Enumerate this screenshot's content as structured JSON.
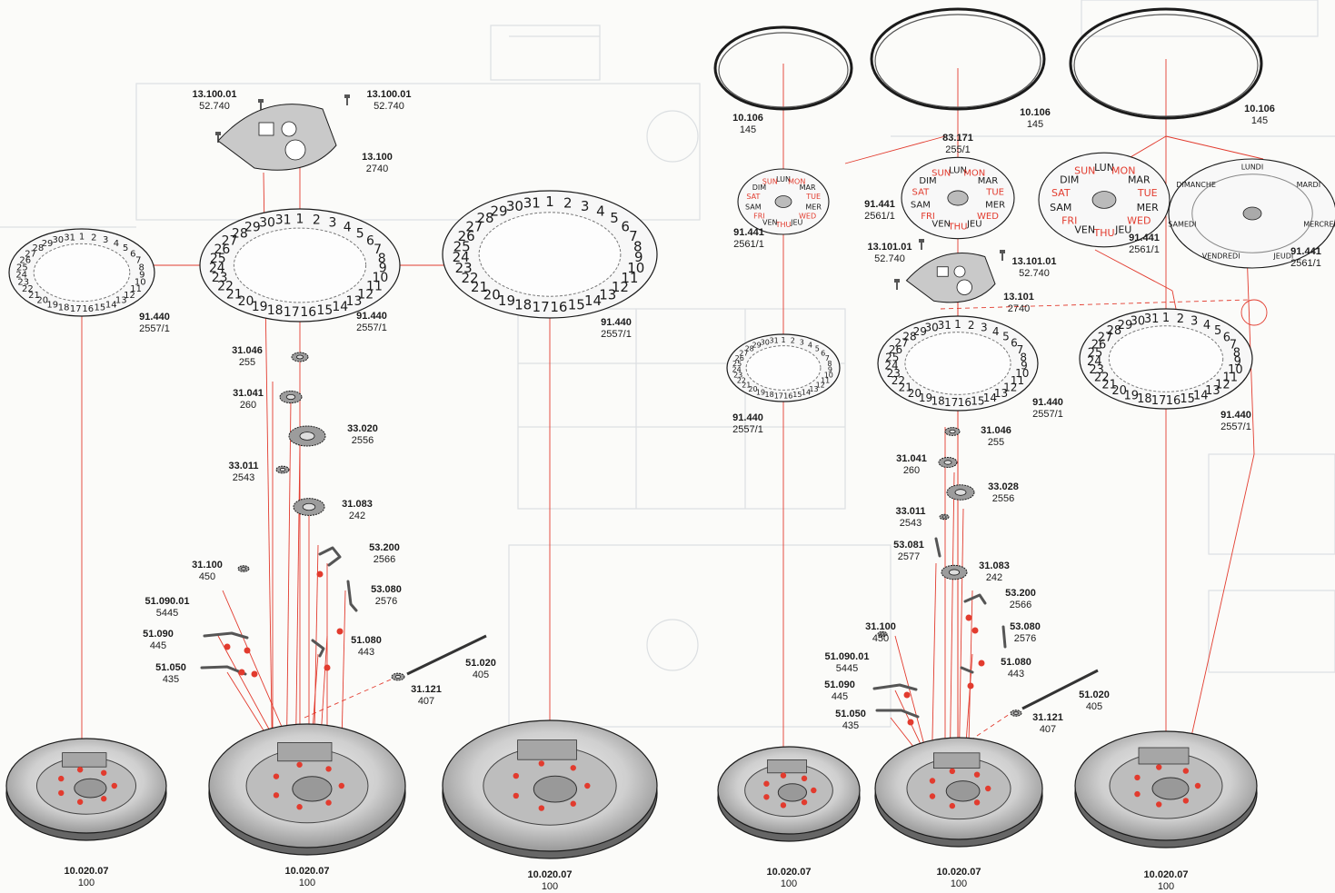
{
  "parts": [
    {
      "id": "p1",
      "code": "13.100.01",
      "number": "52.740"
    },
    {
      "id": "p2",
      "code": "13.100.01",
      "number": "52.740"
    },
    {
      "id": "p3",
      "code": "13.100",
      "number": "2740"
    },
    {
      "id": "p4",
      "code": "91.440",
      "number": "2557/1"
    },
    {
      "id": "p5",
      "code": "91.440",
      "number": "2557/1"
    },
    {
      "id": "p6",
      "code": "91.440",
      "number": "2557/1"
    },
    {
      "id": "p7",
      "code": "31.046",
      "number": "255"
    },
    {
      "id": "p8",
      "code": "31.041",
      "number": "260"
    },
    {
      "id": "p9",
      "code": "33.020",
      "number": "2556"
    },
    {
      "id": "p10",
      "code": "33.011",
      "number": "2543"
    },
    {
      "id": "p11",
      "code": "31.083",
      "number": "242"
    },
    {
      "id": "p12",
      "code": "53.200",
      "number": "2566"
    },
    {
      "id": "p13",
      "code": "31.100",
      "number": "450"
    },
    {
      "id": "p14",
      "code": "53.080",
      "number": "2576"
    },
    {
      "id": "p15",
      "code": "51.090.01",
      "number": "5445"
    },
    {
      "id": "p16",
      "code": "51.090",
      "number": "445"
    },
    {
      "id": "p17",
      "code": "51.080",
      "number": "443"
    },
    {
      "id": "p18",
      "code": "51.050",
      "number": "435"
    },
    {
      "id": "p19",
      "code": "51.020",
      "number": "405"
    },
    {
      "id": "p20",
      "code": "31.121",
      "number": "407"
    },
    {
      "id": "p21",
      "code": "10.020.07",
      "number": "100"
    },
    {
      "id": "p22",
      "code": "10.020.07",
      "number": "100"
    },
    {
      "id": "p23",
      "code": "10.020.07",
      "number": "100"
    },
    {
      "id": "p24",
      "code": "10.106",
      "number": "145"
    },
    {
      "id": "p25",
      "code": "10.106",
      "number": "145"
    },
    {
      "id": "p26",
      "code": "10.106",
      "number": "145"
    },
    {
      "id": "p27",
      "code": "83.171",
      "number": "255/1"
    },
    {
      "id": "p28",
      "code": "91.441",
      "number": "2561/1"
    },
    {
      "id": "p29",
      "code": "91.441",
      "number": "2561/1"
    },
    {
      "id": "p30",
      "code": "91.441",
      "number": "2561/1"
    },
    {
      "id": "p31",
      "code": "91.441",
      "number": "2561/1"
    },
    {
      "id": "p32",
      "code": "13.101.01",
      "number": "52.740"
    },
    {
      "id": "p33",
      "code": "13.101.01",
      "number": "52.740"
    },
    {
      "id": "p34",
      "code": "13.101",
      "number": "2740"
    },
    {
      "id": "p35",
      "code": "91.440",
      "number": "2557/1"
    },
    {
      "id": "p36",
      "code": "91.440",
      "number": "2557/1"
    },
    {
      "id": "p37",
      "code": "91.440",
      "number": "2557/1"
    },
    {
      "id": "p38",
      "code": "31.046",
      "number": "255"
    },
    {
      "id": "p39",
      "code": "31.041",
      "number": "260"
    },
    {
      "id": "p40",
      "code": "33.028",
      "number": "2556"
    },
    {
      "id": "p41",
      "code": "33.011",
      "number": "2543"
    },
    {
      "id": "p42",
      "code": "53.081",
      "number": "2577"
    },
    {
      "id": "p43",
      "code": "31.083",
      "number": "242"
    },
    {
      "id": "p44",
      "code": "53.200",
      "number": "2566"
    },
    {
      "id": "p45",
      "code": "31.100",
      "number": "450"
    },
    {
      "id": "p46",
      "code": "53.080",
      "number": "2576"
    },
    {
      "id": "p47",
      "code": "51.090.01",
      "number": "5445"
    },
    {
      "id": "p48",
      "code": "51.090",
      "number": "445"
    },
    {
      "id": "p49",
      "code": "51.080",
      "number": "443"
    },
    {
      "id": "p50",
      "code": "51.050",
      "number": "435"
    },
    {
      "id": "p51",
      "code": "51.020",
      "number": "405"
    },
    {
      "id": "p52",
      "code": "31.121",
      "number": "407"
    },
    {
      "id": "p53",
      "code": "10.020.07",
      "number": "100"
    },
    {
      "id": "p54",
      "code": "10.020.07",
      "number": "100"
    },
    {
      "id": "p55",
      "code": "10.020.07",
      "number": "100"
    }
  ],
  "date_digits": [
    "1",
    "2",
    "3",
    "4",
    "5",
    "6",
    "7",
    "8",
    "9",
    "10",
    "11",
    "12",
    "13",
    "14",
    "15",
    "16",
    "17",
    "18",
    "19",
    "20",
    "21",
    "22",
    "23",
    "24",
    "25",
    "26",
    "27",
    "28",
    "29",
    "30",
    "31"
  ],
  "day_disc_en": [
    "MON",
    "TUE",
    "WED",
    "THU",
    "FRI",
    "SAT",
    "SUN"
  ],
  "day_disc_fr": [
    "LUN",
    "MAR",
    "MER",
    "JEU",
    "VEN",
    "SAM",
    "DIM"
  ],
  "day_ring_fr": [
    "LUNDI",
    "MARDI",
    "MERCREDI",
    "JEUDI",
    "VENDREDI",
    "SAMEDI",
    "DIMANCHE"
  ],
  "colors": {
    "leader": "#e23b2e",
    "metal": "#8c8c8c",
    "ink": "#1b1b1b",
    "grid": "#d9dde0"
  }
}
